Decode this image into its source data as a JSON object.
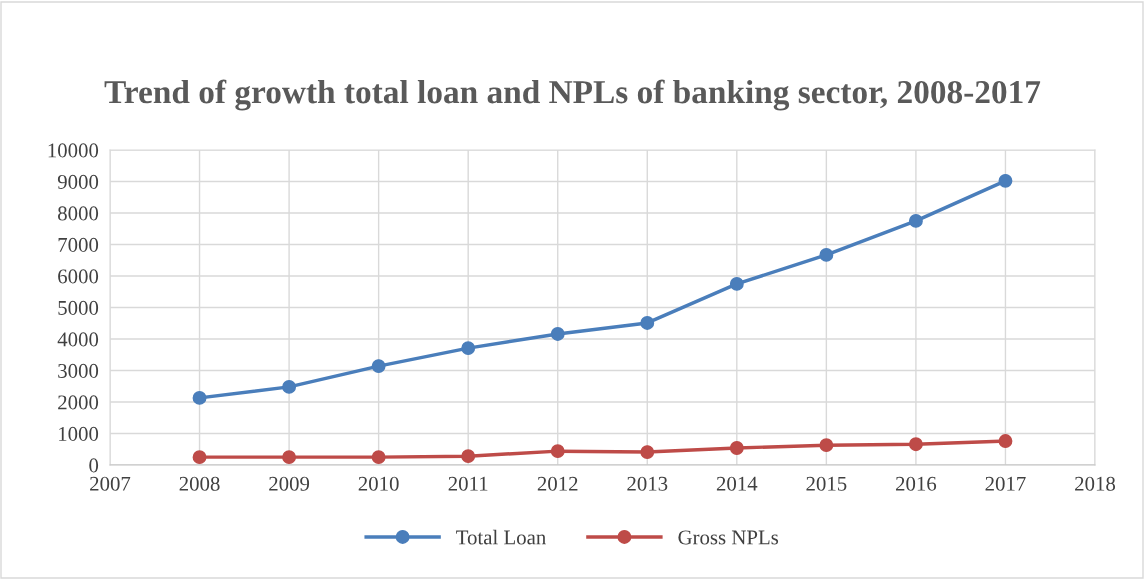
{
  "chart_data": {
    "type": "line",
    "title": "Trend of growth total loan and NPLs of banking sector, 2008-2017",
    "x": [
      2008,
      2009,
      2010,
      2011,
      2012,
      2013,
      2014,
      2015,
      2016,
      2017
    ],
    "series": [
      {
        "name": "Total Loan",
        "color": "#4a7ebb",
        "values": [
          2130,
          2480,
          3140,
          3710,
          4160,
          4510,
          5750,
          6670,
          7750,
          9020
        ]
      },
      {
        "name": "Gross NPLs",
        "color": "#be4b48",
        "values": [
          250,
          250,
          250,
          280,
          440,
          410,
          540,
          630,
          660,
          760
        ]
      }
    ],
    "xlim": [
      2007,
      2018
    ],
    "xticks": [
      2007,
      2008,
      2009,
      2010,
      2011,
      2012,
      2013,
      2014,
      2015,
      2016,
      2017,
      2018
    ],
    "ylim": [
      0,
      10000
    ],
    "yticks": [
      0,
      1000,
      2000,
      3000,
      4000,
      5000,
      6000,
      7000,
      8000,
      9000,
      10000
    ],
    "grid": true,
    "legend": "bottom",
    "marker": "circle",
    "line_style": "solid"
  }
}
